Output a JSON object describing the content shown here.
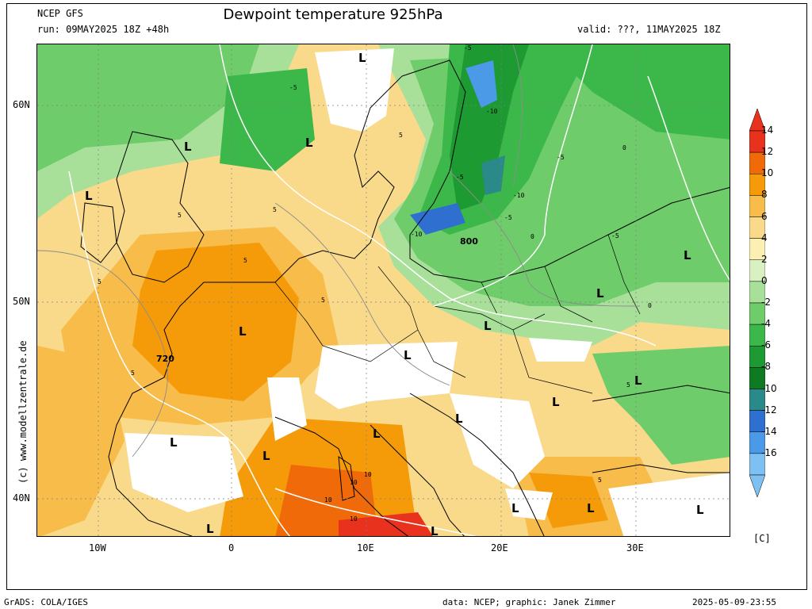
{
  "header": {
    "model": "NCEP GFS",
    "run": "run: 09MAY2025 18Z +48h",
    "title": "Dewpoint temperature 925hPa",
    "valid": "valid: ???, 11MAY2025 18Z"
  },
  "axes": {
    "lat_labels": [
      "60N",
      "50N",
      "40N"
    ],
    "lon_labels": [
      "10W",
      "0",
      "10E",
      "20E",
      "30E"
    ]
  },
  "side_credit": "(c) www.modellzentrale.de",
  "colorbar": {
    "labels": [
      "14",
      "12",
      "10",
      "8",
      "6",
      "4",
      "2",
      "0",
      "-2",
      "-4",
      "-6",
      "-8",
      "-10",
      "-12",
      "-14",
      "-16"
    ],
    "unit": "[C]",
    "colors": [
      "#e8321e",
      "#f06a0a",
      "#f59b0a",
      "#f7bc4a",
      "#f9d98a",
      "#fbefb4",
      "#d8f0c2",
      "#a8e09a",
      "#6ecc6a",
      "#3cb84a",
      "#1e9a32",
      "#0e7a22",
      "#2a8a8a",
      "#2f6fd0",
      "#4a9ae8",
      "#7ec0f2"
    ]
  },
  "map_labels": {
    "lows": [
      "L",
      "L",
      "L",
      "L",
      "L",
      "L",
      "L",
      "L",
      "L",
      "L",
      "L",
      "L",
      "L",
      "L",
      "L",
      "L",
      "L",
      "L",
      "L",
      "L"
    ],
    "height_720": "720",
    "height_800": "800",
    "isotherm_values": [
      "-5",
      "-5",
      "-10",
      "-5",
      "-10",
      "-5",
      "-10",
      "-5",
      "-5",
      "0",
      "0",
      "0",
      "5",
      "5",
      "5",
      "5",
      "5",
      "5",
      "5",
      "10",
      "10",
      "10",
      "10",
      "5",
      "5"
    ]
  },
  "footer": {
    "grads": "GrADS: COLA/IGES",
    "data": "data: NCEP; graphic: Janek Zimmer",
    "timestamp": "2025-05-09-23:55"
  }
}
